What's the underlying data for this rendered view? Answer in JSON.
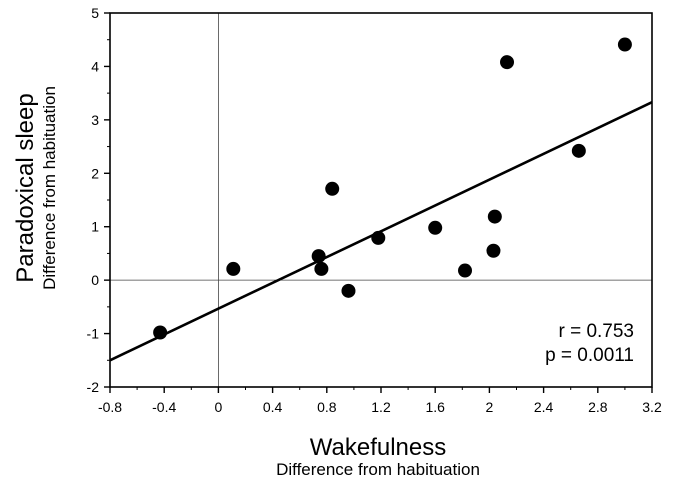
{
  "chart_data": {
    "type": "scatter",
    "xlabel": "Wakefulness",
    "xsublabel": "Difference from habituation",
    "ylabel": "Paradoxical sleep",
    "ysublabel": "Difference from habituation",
    "xlim": [
      -0.8,
      3.2
    ],
    "ylim": [
      -2,
      5
    ],
    "xticks": [
      -0.8,
      -0.4,
      0,
      0.4,
      0.8,
      1.2,
      1.6,
      2,
      2.4,
      2.8,
      3.2
    ],
    "xtick_labels": [
      "-0.8",
      "-0.4",
      "0",
      "0.4",
      "0.8",
      "1.2",
      "1.6",
      "2",
      "2.4",
      "2.8",
      "3.2"
    ],
    "yticks": [
      -2,
      -1,
      0,
      1,
      2,
      3,
      4,
      5
    ],
    "ytick_labels": [
      "-2",
      "-1",
      "0",
      "1",
      "2",
      "3",
      "4",
      "5"
    ],
    "grid": false,
    "reference_lines": {
      "x": 0,
      "y": 0
    },
    "points": [
      {
        "x": -0.43,
        "y": -0.98
      },
      {
        "x": 0.11,
        "y": 0.21
      },
      {
        "x": 0.74,
        "y": 0.45
      },
      {
        "x": 0.76,
        "y": 0.21
      },
      {
        "x": 0.84,
        "y": 1.71
      },
      {
        "x": 0.96,
        "y": -0.2
      },
      {
        "x": 1.18,
        "y": 0.79
      },
      {
        "x": 1.6,
        "y": 0.98
      },
      {
        "x": 1.82,
        "y": 0.18
      },
      {
        "x": 2.03,
        "y": 0.55
      },
      {
        "x": 2.04,
        "y": 1.19
      },
      {
        "x": 2.13,
        "y": 4.08
      },
      {
        "x": 2.66,
        "y": 2.42
      },
      {
        "x": 3.0,
        "y": 4.41
      }
    ],
    "regression_line": {
      "x": [
        -0.8,
        3.2
      ],
      "y": [
        -1.5,
        3.33
      ]
    },
    "annotations": [
      "r = 0.753",
      "p = 0.0011"
    ]
  }
}
